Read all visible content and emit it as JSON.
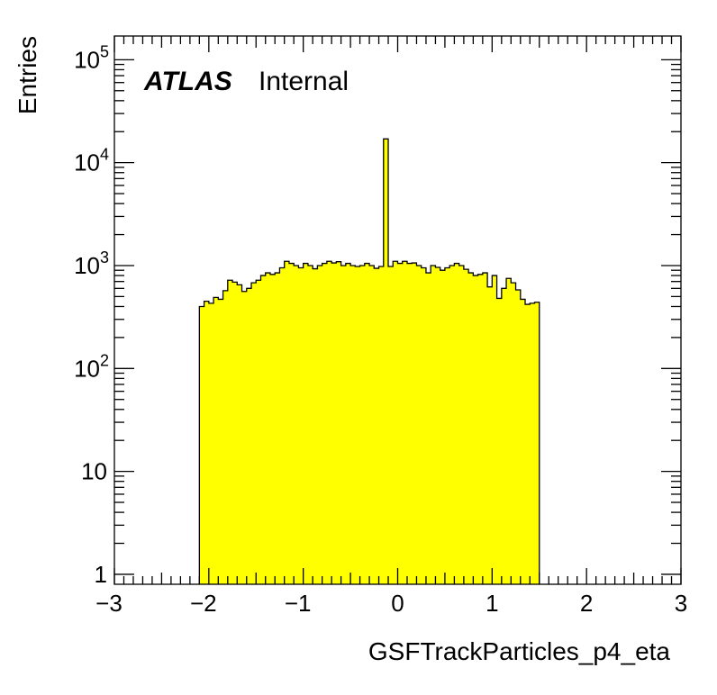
{
  "chart_data": {
    "type": "bar",
    "histogram": true,
    "xlabel": "GSFTrackParticles_p4_eta",
    "ylabel": "Entries",
    "xlim": [
      -3,
      3
    ],
    "ylim": [
      0.8,
      170000
    ],
    "yscale": "log",
    "fill_color": "#ffff00",
    "label_bold": "ATLAS",
    "label_normal": "Internal",
    "x_ticks": [
      -3,
      -2,
      -1,
      0,
      1,
      2,
      3
    ],
    "x_tick_labels": [
      "−3",
      "−2",
      "−1",
      "0",
      "1",
      "2",
      "3"
    ],
    "y_ticks": [
      {
        "value": 1,
        "base": "1",
        "exp": ""
      },
      {
        "value": 10,
        "base": "10",
        "exp": ""
      },
      {
        "value": 100,
        "base": "10",
        "exp": "2"
      },
      {
        "value": 1000,
        "base": "10",
        "exp": "3"
      },
      {
        "value": 10000,
        "base": "10",
        "exp": "4"
      },
      {
        "value": 100000,
        "base": "10",
        "exp": "5"
      }
    ],
    "bin_edges_start": -2.1,
    "bin_width": 0.05,
    "values": [
      400,
      450,
      430,
      490,
      470,
      570,
      720,
      690,
      650,
      560,
      600,
      680,
      720,
      800,
      850,
      820,
      850,
      950,
      1100,
      1050,
      1000,
      950,
      1050,
      1000,
      930,
      1000,
      1050,
      1100,
      1060,
      1090,
      1000,
      1050,
      1000,
      980,
      1000,
      1050,
      1000,
      940,
      980,
      17000,
      980,
      1100,
      1050,
      1100,
      1050,
      1060,
      1000,
      950,
      850,
      1000,
      960,
      900,
      950,
      1000,
      1050,
      1000,
      920,
      850,
      800,
      820,
      850,
      620,
      800,
      480,
      600,
      750,
      680,
      580,
      470,
      420,
      430,
      440
    ]
  }
}
